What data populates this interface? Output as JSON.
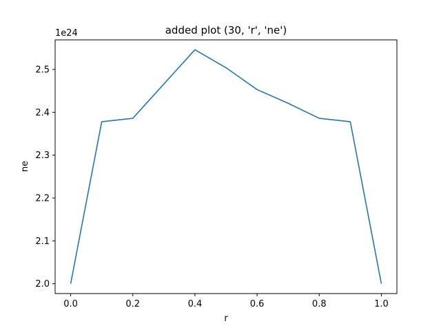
{
  "chart_data": {
    "type": "line",
    "title": "added plot (30, 'r', 'ne')",
    "xlabel": "r",
    "ylabel": "ne",
    "y_offset_label": "1e24",
    "xlim": [
      -0.05,
      1.05
    ],
    "ylim": [
      1.977,
      2.569
    ],
    "x_ticks": [
      0.0,
      0.2,
      0.4,
      0.6,
      0.8,
      1.0
    ],
    "x_tick_labels": [
      "0.0",
      "0.2",
      "0.4",
      "0.6",
      "0.8",
      "1.0"
    ],
    "y_ticks": [
      2.0,
      2.1,
      2.2,
      2.3,
      2.4,
      2.5
    ],
    "y_tick_labels": [
      "2.0",
      "2.1",
      "2.2",
      "2.3",
      "2.4",
      "2.5"
    ],
    "grid": false,
    "series": [
      {
        "color": "#1f77b4",
        "x": [
          0.0,
          0.1,
          0.2,
          0.3,
          0.4,
          0.5,
          0.6,
          0.7,
          0.8,
          0.9,
          1.0
        ],
        "y": [
          2.0,
          2.378,
          2.386,
          2.466,
          2.546,
          2.504,
          2.453,
          2.421,
          2.386,
          2.378,
          2.0
        ]
      }
    ]
  }
}
